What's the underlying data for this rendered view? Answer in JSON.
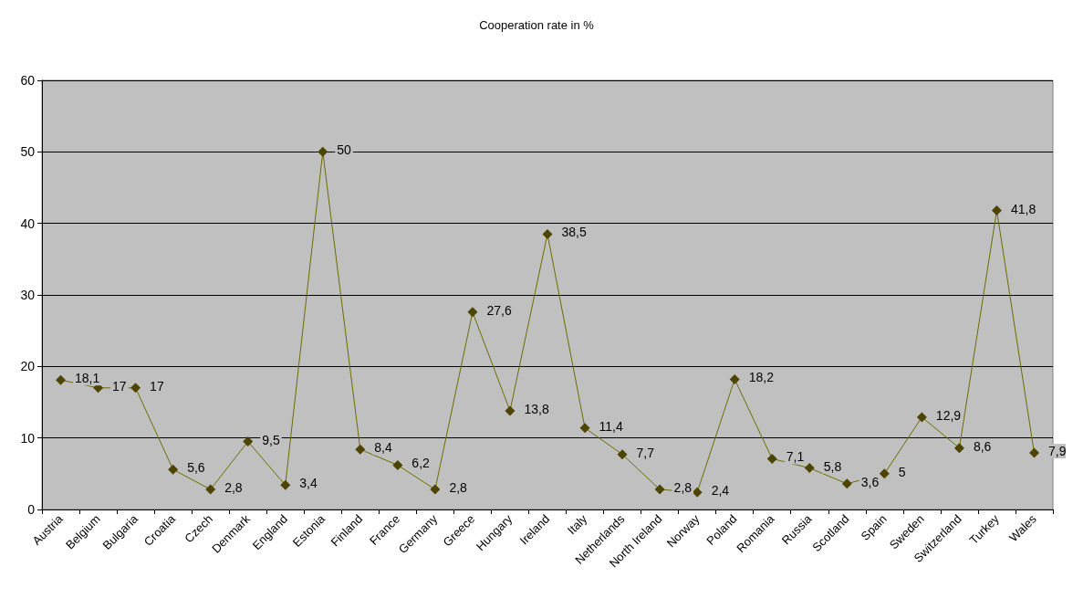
{
  "chart_data": {
    "type": "line",
    "title": "Cooperation rate in %",
    "categories": [
      "Austria",
      "Belgium",
      "Bulgaria",
      "Croatia",
      "Czech",
      "Denmark",
      "England",
      "Estonia",
      "Finland",
      "France",
      "Germany",
      "Greece",
      "Hungary",
      "Ireland",
      "Italy",
      "Netherlands",
      "North Ireland",
      "Norway",
      "Poland",
      "Romania",
      "Russia",
      "Scotland",
      "Spain",
      "Sweden",
      "Switzerland",
      "Turkey",
      "Wales"
    ],
    "series": [
      {
        "color": "#4d4400",
        "values": [
          18.1,
          17,
          17,
          5.6,
          2.8,
          9.5,
          3.4,
          50,
          8.4,
          6.2,
          2.8,
          27.6,
          13.8,
          38.5,
          11.4,
          7.7,
          2.8,
          2.4,
          18.2,
          7.1,
          5.8,
          3.6,
          5,
          12.9,
          8.6,
          41.8,
          7.9
        ],
        "value_labels": [
          "18,1",
          "17",
          "17",
          "5,6",
          "2,8",
          "9,5",
          "3,4",
          "50",
          "8,4",
          "6,2",
          "2,8",
          "27,6",
          "13,8",
          "38,5",
          "11,4",
          "7,7",
          "2,8",
          "2,4",
          "18,2",
          "7,1",
          "5,8",
          "3,6",
          "5",
          "12,9",
          "8,6",
          "41,8",
          "7,9"
        ]
      }
    ],
    "ylim": [
      0,
      60
    ],
    "yticks": [
      0,
      10,
      20,
      30,
      40,
      50,
      60
    ],
    "grid": "y",
    "marker": "diamond",
    "line_style": "solid"
  }
}
